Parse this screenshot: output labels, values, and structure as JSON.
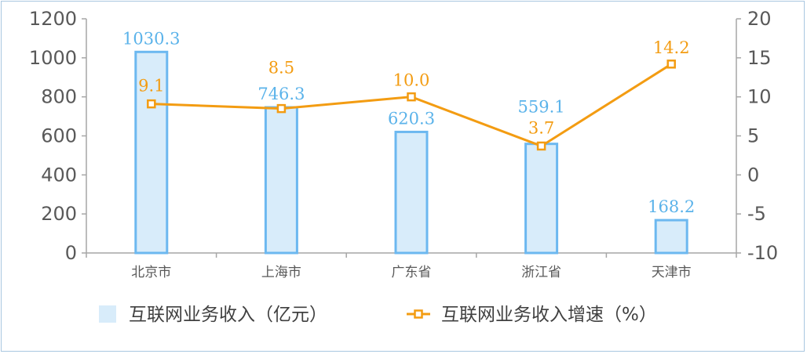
{
  "chart_data": {
    "type": "bar+line",
    "categories": [
      "北京市",
      "上海市",
      "广东省",
      "浙江省",
      "天津市"
    ],
    "series": [
      {
        "name": "互联网业务收入（亿元）",
        "type": "bar",
        "axis": "left",
        "values": [
          1030.3,
          746.3,
          620.3,
          559.1,
          168.2
        ],
        "color": "#6cb8f0",
        "fill": "#d8ecfa"
      },
      {
        "name": "互联网业务收入增速（%）",
        "type": "line",
        "axis": "right",
        "values": [
          9.1,
          8.5,
          10.0,
          3.7,
          14.2
        ],
        "color": "#f39c12"
      }
    ],
    "bar_labels": [
      "1030.3",
      "746.3",
      "620.3",
      "559.1",
      "168.2"
    ],
    "line_labels": [
      "9.1",
      "8.5",
      "10.0",
      "3.7",
      "14.2"
    ],
    "y_left": {
      "min": 0,
      "max": 1200,
      "ticks": [
        "0",
        "200",
        "400",
        "600",
        "800",
        "1000",
        "1200"
      ]
    },
    "y_right": {
      "min": -10,
      "max": 20,
      "ticks": [
        "-10",
        "-5",
        "0",
        "5",
        "10",
        "15",
        "20"
      ]
    },
    "grid": false,
    "legend": "bottom",
    "title": "",
    "xlabel": "",
    "ylabel": ""
  }
}
